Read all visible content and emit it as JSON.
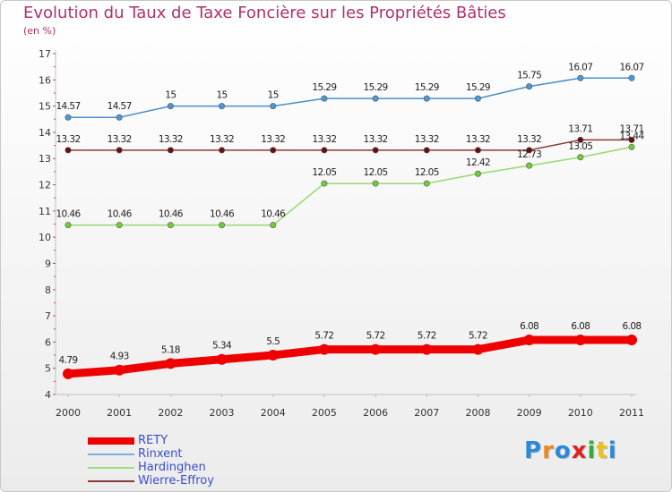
{
  "header": {
    "title": "Evolution du Taux de Taxe Foncière sur les Propriétés Bâties",
    "subtitle": "(en %)"
  },
  "chart_data": {
    "type": "line",
    "title": "Evolution du Taux de Taxe Foncière sur les Propriétés Bâties",
    "ylabel": "(en %)",
    "xlabel": "",
    "ylim": [
      4,
      17
    ],
    "yticks": [
      4,
      5,
      6,
      7,
      8,
      9,
      10,
      11,
      12,
      13,
      14,
      15,
      16,
      17
    ],
    "grid": false,
    "legend": "bottom-left",
    "categories": [
      "2000",
      "2001",
      "2002",
      "2003",
      "2004",
      "2005",
      "2006",
      "2007",
      "2008",
      "2009",
      "2010",
      "2011"
    ],
    "series": [
      {
        "name": "Rinxent",
        "color": "#4a8fc8",
        "marker": "#4a9ad8",
        "values": [
          14.57,
          14.57,
          15,
          15,
          15,
          15.29,
          15.29,
          15.29,
          15.29,
          15.75,
          16.07,
          16.07
        ],
        "labels": [
          "14.57",
          "14.57",
          "15",
          "15",
          "15",
          "15.29",
          "15.29",
          "15.29",
          "15.29",
          "15.75",
          "16.07",
          "16.07"
        ]
      },
      {
        "name": "Wierre-Effroy",
        "color": "#8b3a3a",
        "marker": "#6a1010",
        "values": [
          13.32,
          13.32,
          13.32,
          13.32,
          13.32,
          13.32,
          13.32,
          13.32,
          13.32,
          13.32,
          13.71,
          13.71
        ],
        "labels": [
          "13.32",
          "13.32",
          "13.32",
          "13.32",
          "13.32",
          "13.32",
          "13.32",
          "13.32",
          "13.32",
          "13.32",
          "13.71",
          "13.71"
        ]
      },
      {
        "name": "Hardinghen",
        "color": "#98d870",
        "marker": "#72cc3a",
        "values": [
          10.46,
          10.46,
          10.46,
          10.46,
          10.46,
          12.05,
          12.05,
          12.05,
          12.42,
          12.73,
          13.05,
          13.44
        ],
        "labels": [
          "10.46",
          "10.46",
          "10.46",
          "10.46",
          "10.46",
          "12.05",
          "12.05",
          "12.05",
          "12.42",
          "12.73",
          "13.05",
          "13.44"
        ]
      },
      {
        "name": "RETY",
        "color": "#ee0000",
        "marker": "#ee0000",
        "values": [
          4.79,
          4.93,
          5.18,
          5.34,
          5.5,
          5.72,
          5.72,
          5.72,
          5.72,
          6.08,
          6.08,
          6.08
        ],
        "labels": [
          "4.79",
          "4.93",
          "5.18",
          "5.34",
          "5.5",
          "5.72",
          "5.72",
          "5.72",
          "5.72",
          "6.08",
          "6.08",
          "6.08"
        ]
      }
    ]
  },
  "legend": {
    "items": [
      {
        "label": "RETY",
        "color": "#ee0000"
      },
      {
        "label": "Rinxent",
        "color": "#7ab0e0"
      },
      {
        "label": "Hardinghen",
        "color": "#a0dc78"
      },
      {
        "label": "Wierre-Effroy",
        "color": "#8b3a3a"
      }
    ]
  },
  "logo": {
    "letters": [
      "P",
      "r",
      "o",
      "x",
      "i",
      "t",
      "i"
    ],
    "colors": [
      "#2a8ad8",
      "#e88a20",
      "#2a8ad8",
      "#e02020",
      "#38a838",
      "#e8c020",
      "#2a8ad8"
    ]
  }
}
